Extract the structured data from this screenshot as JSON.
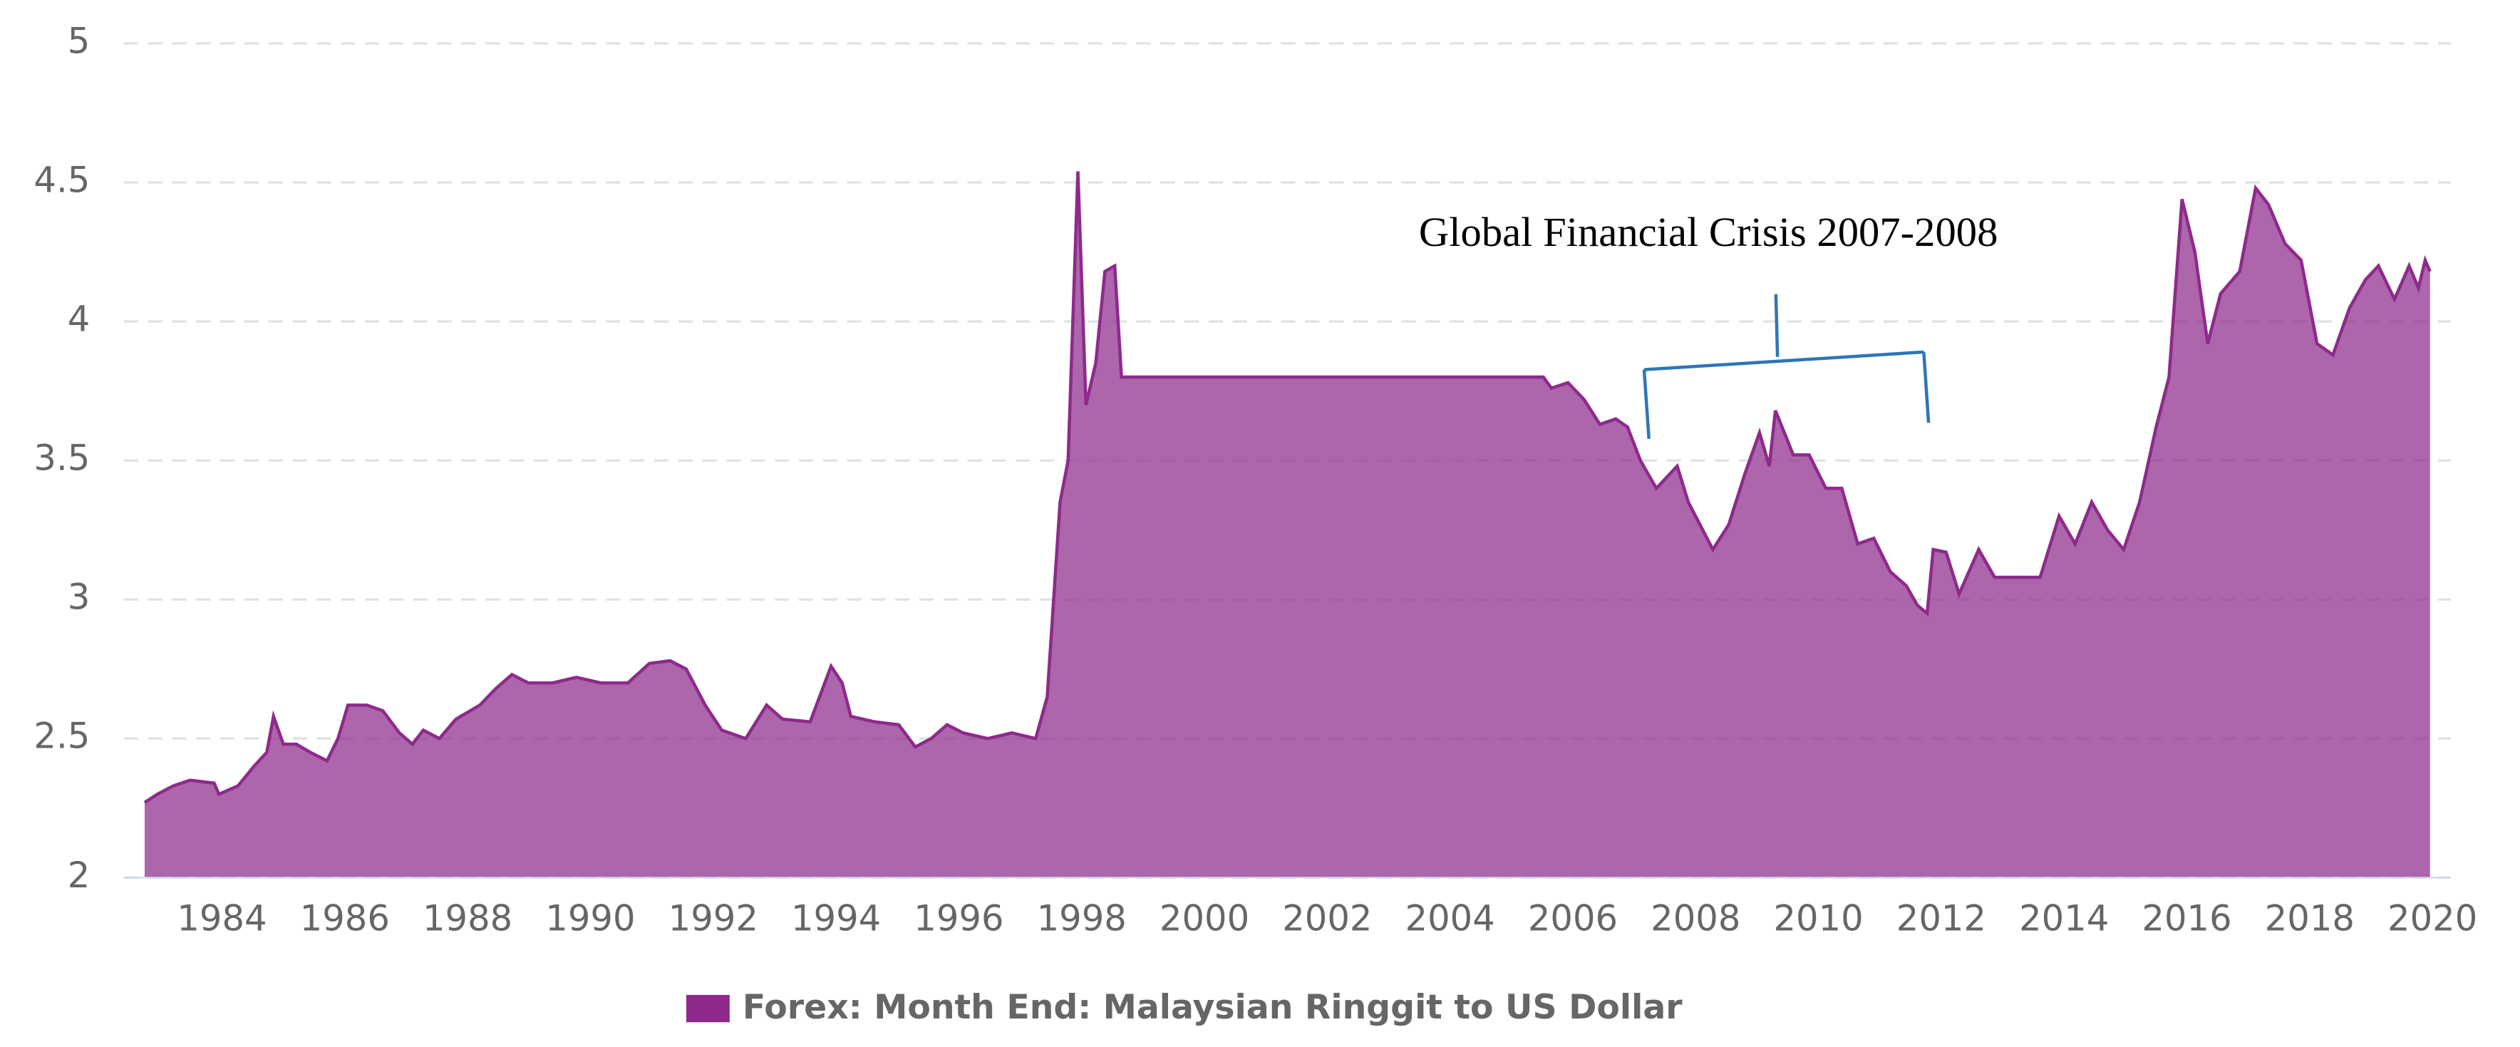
{
  "chart_data": {
    "type": "area",
    "series": [
      {
        "name": "Forex: Month End: Malaysian Ringgit to US Dollar",
        "color": "#8e2a8b",
        "x": [
          1982.74,
          1982.95,
          1983.21,
          1983.48,
          1983.87,
          1983.95,
          1984.26,
          1984.52,
          1984.73,
          1984.84,
          1985.0,
          1985.21,
          1985.44,
          1985.71,
          1985.89,
          1986.05,
          1986.36,
          1986.62,
          1986.89,
          1987.1,
          1987.28,
          1987.54,
          1987.81,
          1988.2,
          1988.46,
          1988.72,
          1988.99,
          1989.38,
          1989.77,
          1990.17,
          1990.61,
          1990.96,
          1991.3,
          1991.56,
          1991.87,
          1992.14,
          1992.53,
          1992.87,
          1993.13,
          1993.58,
          1993.92,
          1994.1,
          1994.24,
          1994.63,
          1995.02,
          1995.29,
          1995.55,
          1995.81,
          1996.07,
          1996.47,
          1996.86,
          1997.25,
          1997.44,
          1997.65,
          1997.78,
          1997.94,
          1998.07,
          1998.23,
          1998.38,
          1998.54,
          1998.65,
          2005.52,
          2005.65,
          2005.92,
          2006.18,
          2006.44,
          2006.7,
          2006.89,
          2007.1,
          2007.36,
          2007.7,
          2007.88,
          2008.28,
          2008.54,
          2008.8,
          2009.04,
          2009.2,
          2009.3,
          2009.59,
          2009.85,
          2010.12,
          2010.38,
          2010.64,
          2010.9,
          2011.17,
          2011.43,
          2011.61,
          2011.77,
          2011.87,
          2012.08,
          2012.29,
          2012.61,
          2012.87,
          2013.27,
          2013.61,
          2013.92,
          2014.18,
          2014.45,
          2014.71,
          2014.97,
          2015.23,
          2015.5,
          2015.71,
          2015.92,
          2016.13,
          2016.34,
          2016.55,
          2016.86,
          2017.12,
          2017.33,
          2017.6,
          2017.86,
          2018.12,
          2018.38,
          2018.65,
          2018.91,
          2019.12,
          2019.38,
          2019.62,
          2019.77,
          2019.88,
          2019.96
        ],
        "values": [
          2.27,
          2.3,
          2.33,
          2.35,
          2.34,
          2.3,
          2.33,
          2.4,
          2.45,
          2.58,
          2.48,
          2.48,
          2.45,
          2.42,
          2.5,
          2.62,
          2.62,
          2.6,
          2.52,
          2.48,
          2.53,
          2.5,
          2.57,
          2.62,
          2.68,
          2.73,
          2.7,
          2.7,
          2.72,
          2.7,
          2.7,
          2.77,
          2.78,
          2.75,
          2.62,
          2.53,
          2.5,
          2.62,
          2.57,
          2.56,
          2.76,
          2.7,
          2.58,
          2.56,
          2.55,
          2.47,
          2.5,
          2.55,
          2.52,
          2.5,
          2.52,
          2.5,
          2.65,
          3.35,
          3.5,
          4.54,
          3.7,
          3.85,
          4.18,
          4.2,
          3.8,
          3.8,
          3.76,
          3.78,
          3.72,
          3.63,
          3.65,
          3.62,
          3.5,
          3.4,
          3.48,
          3.35,
          3.18,
          3.27,
          3.45,
          3.6,
          3.48,
          3.68,
          3.52,
          3.52,
          3.4,
          3.4,
          3.2,
          3.22,
          3.1,
          3.05,
          2.98,
          2.95,
          3.18,
          3.17,
          3.02,
          3.18,
          3.08,
          3.08,
          3.08,
          3.3,
          3.2,
          3.35,
          3.25,
          3.18,
          3.35,
          3.62,
          3.8,
          4.44,
          4.25,
          3.92,
          4.1,
          4.18,
          4.48,
          4.42,
          4.28,
          4.22,
          3.92,
          3.88,
          4.05,
          4.15,
          4.2,
          4.08,
          4.2,
          4.12,
          4.22,
          4.18
        ]
      }
    ],
    "xlim": [
      1982.4,
      2020.3
    ],
    "xticks": [
      1984,
      1986,
      1988,
      1990,
      1992,
      1994,
      1996,
      1998,
      2000,
      2002,
      2004,
      2006,
      2008,
      2010,
      2012,
      2014,
      2016,
      2018,
      2020
    ],
    "ylim": [
      2,
      5
    ],
    "yticks": [
      2,
      2.5,
      3,
      3.5,
      4,
      4.5,
      5
    ],
    "grid": true,
    "legend": "bottom",
    "annotation": "Global Financial Crisis 2007-2008"
  }
}
